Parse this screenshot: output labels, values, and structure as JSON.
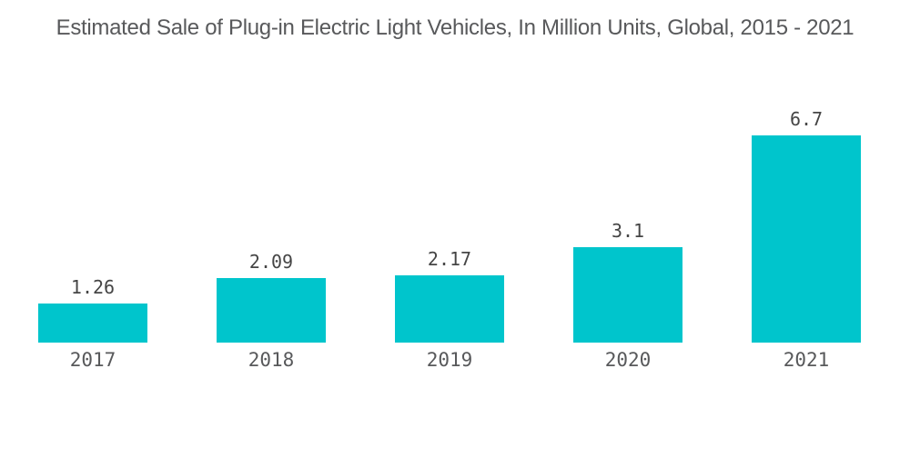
{
  "chart_data": {
    "type": "bar",
    "title": "Estimated Sale of Plug-in Electric Light Vehicles, In Million Units, Global, 2015 - 2021",
    "categories": [
      "2017",
      "2018",
      "2019",
      "2020",
      "2021"
    ],
    "values": [
      1.26,
      2.09,
      2.17,
      3.1,
      6.7
    ],
    "value_labels": [
      "1.26",
      "2.09",
      "2.17",
      "3.1",
      "6.7"
    ],
    "xlabel": "",
    "ylabel": "",
    "ylim": [
      0,
      7
    ],
    "grid": false,
    "legend": false,
    "colors": {
      "bar": "#00C5CC",
      "title_text": "#58595B",
      "value_text": "#454545",
      "axis_text": "#58595B",
      "background": "#FFFFFF"
    }
  }
}
